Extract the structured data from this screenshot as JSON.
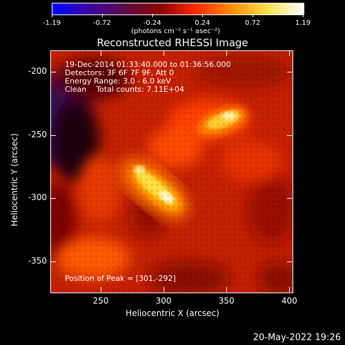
{
  "colorbar": {
    "ticks": [
      "-1.19",
      "-0.72",
      "-0.24",
      "0.24",
      "0.72",
      "1.19"
    ],
    "units": "(photons cm⁻² s⁻¹ asec⁻²)",
    "stops": [
      "#0000ff",
      "#3c00a6",
      "#5c0a4a",
      "#8b0000",
      "#ff2a00",
      "#ff8c00",
      "#ffe050",
      "#ffffff"
    ]
  },
  "title": "Reconstructed RHESSI Image",
  "info": {
    "line1": "19-Dec-2014 01:33:40.000 to 01:36:56.000",
    "line2": "Detectors: 3F 6F 7F 9F, Att 0",
    "line3": "Energy Range: 3.0 - 6.0 keV",
    "line4": "Clean    Total counts: 7.11E+04",
    "peak": "Position of Peak = [301,-292]"
  },
  "axes": {
    "xlabel": "Heliocentric X (arcsec)",
    "ylabel": "Heliocentric Y (arcsec)",
    "xticks": [
      "250",
      "300",
      "350",
      "400"
    ],
    "yticks": [
      "-200",
      "-250",
      "-300",
      "-350"
    ],
    "xrange": [
      210,
      402
    ],
    "yrange": [
      -183,
      -374
    ]
  },
  "footer": {
    "date": "20-May-2022 19:26"
  }
}
